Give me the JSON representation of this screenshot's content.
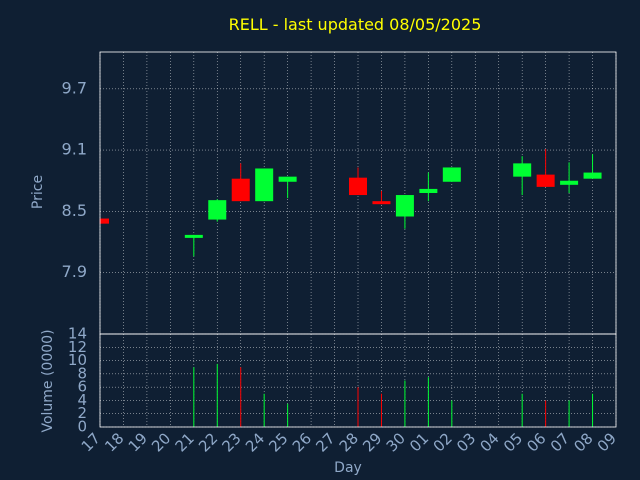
{
  "chart_data": {
    "type": "candlestick",
    "title": "RELL - last updated 08/05/2025",
    "xlabel": "Day",
    "price_panel": {
      "ylabel": "Price",
      "yticks": [
        "9.7",
        "9.1",
        "8.5",
        "7.9"
      ],
      "ylim": [
        7.3,
        10.06
      ],
      "grid": true
    },
    "volume_panel": {
      "ylabel": "Volume (0000)",
      "yticks": [
        "14",
        "12",
        "10",
        "8",
        "6",
        "4",
        "2",
        "0"
      ],
      "ylim": [
        0,
        14
      ],
      "grid": true
    },
    "x_ticks": [
      "17",
      "18",
      "19",
      "20",
      "21",
      "22",
      "23",
      "24",
      "25",
      "26",
      "27",
      "28",
      "29",
      "30",
      "01",
      "02",
      "03",
      "04",
      "05",
      "06",
      "07",
      "08",
      "09"
    ],
    "candles": [
      {
        "day": "17",
        "open": 8.43,
        "high": 8.43,
        "low": 8.38,
        "close": 8.38,
        "volume": 0
      },
      {
        "day": "21",
        "open": 8.25,
        "high": 8.27,
        "low": 8.06,
        "close": 8.27,
        "volume": 9
      },
      {
        "day": "22",
        "open": 8.42,
        "high": 8.62,
        "low": 8.4,
        "close": 8.61,
        "volume": 9.5
      },
      {
        "day": "23",
        "open": 8.82,
        "high": 8.97,
        "low": 8.6,
        "close": 8.6,
        "volume": 9
      },
      {
        "day": "24",
        "open": 8.6,
        "high": 8.92,
        "low": 8.6,
        "close": 8.92,
        "volume": 5
      },
      {
        "day": "25",
        "open": 8.79,
        "high": 8.84,
        "low": 8.63,
        "close": 8.84,
        "volume": 3.5
      },
      {
        "day": "28",
        "open": 8.83,
        "high": 8.93,
        "low": 8.66,
        "close": 8.66,
        "volume": 6
      },
      {
        "day": "29",
        "open": 8.6,
        "high": 8.7,
        "low": 8.57,
        "close": 8.58,
        "volume": 5
      },
      {
        "day": "30",
        "open": 8.45,
        "high": 8.66,
        "low": 8.33,
        "close": 8.66,
        "volume": 7
      },
      {
        "day": "01",
        "open": 8.68,
        "high": 8.88,
        "low": 8.6,
        "close": 8.72,
        "volume": 7.5
      },
      {
        "day": "02",
        "open": 8.79,
        "high": 8.93,
        "low": 8.79,
        "close": 8.93,
        "volume": 4
      },
      {
        "day": "05",
        "open": 8.84,
        "high": 9.04,
        "low": 8.66,
        "close": 8.97,
        "volume": 5
      },
      {
        "day": "06",
        "open": 8.86,
        "high": 9.11,
        "low": 8.74,
        "close": 8.74,
        "volume": 4
      },
      {
        "day": "07",
        "open": 8.76,
        "high": 8.98,
        "low": 8.68,
        "close": 8.8,
        "volume": 4
      },
      {
        "day": "08",
        "open": 8.82,
        "high": 9.06,
        "low": 8.82,
        "close": 8.88,
        "volume": 5
      }
    ],
    "colors": {
      "background": "#0f1f33",
      "up": "#00ff33",
      "down": "#ff0000",
      "grid": "#ffffff",
      "axis_text": "#8fa8c8",
      "title": "#ffff00"
    }
  }
}
